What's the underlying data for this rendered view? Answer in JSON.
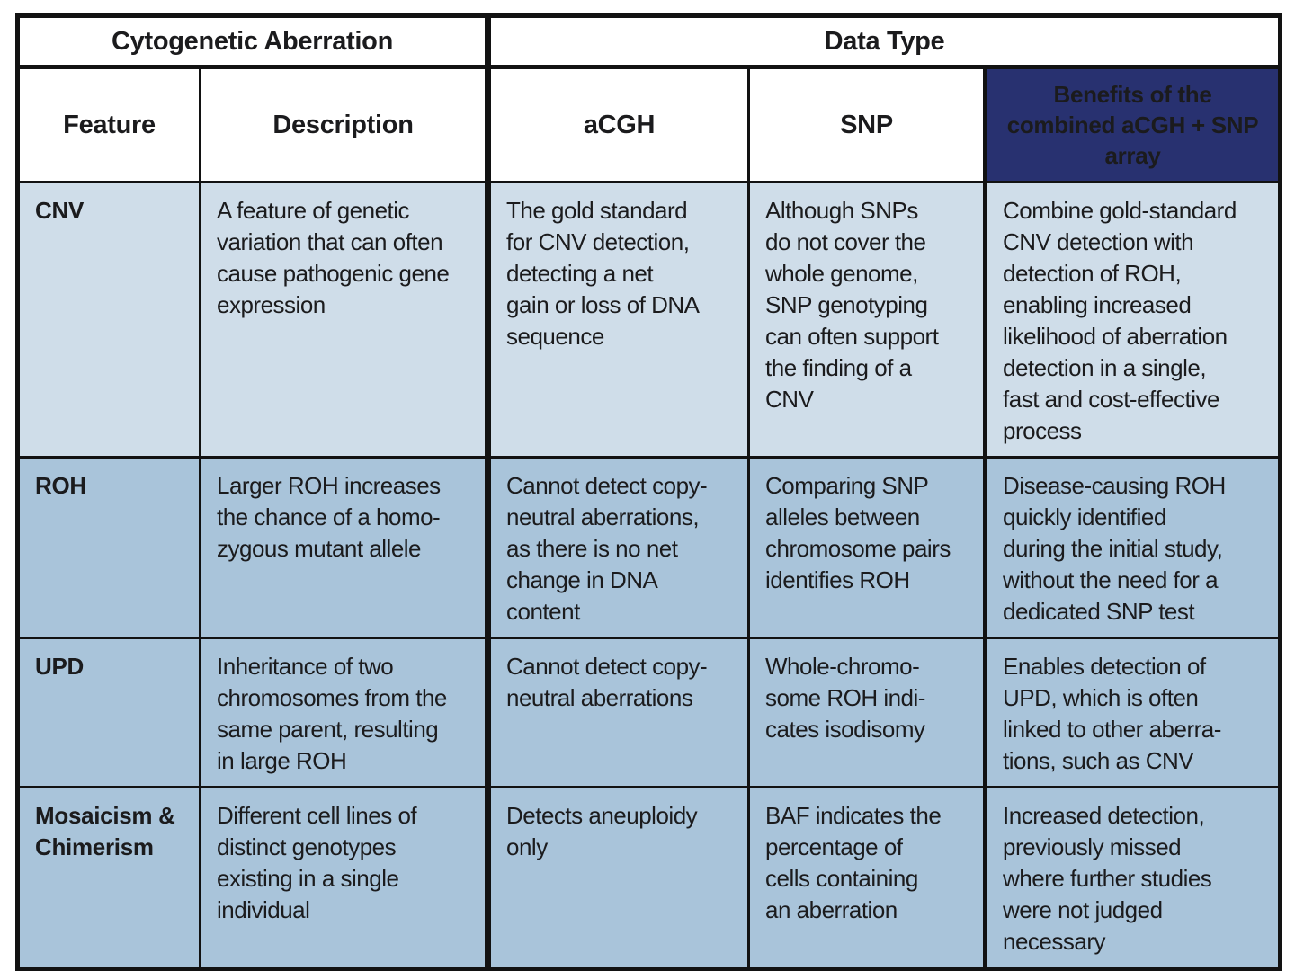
{
  "table": {
    "header": {
      "group_cytogenetic": "Cytogenetic Aberration",
      "group_data_type": "Data Type",
      "col_feature": "Feature",
      "col_description": "Description",
      "col_acgh": "aCGH",
      "col_snp": "SNP",
      "col_benefits": "Benefits of the\ncombined aCGH + SNP\narray"
    },
    "rows": [
      {
        "feature": "CNV",
        "description": "A feature of genetic\nvariation that can often\ncause pathogenic gene\nexpression",
        "acgh": "The gold standard\nfor CNV detection,\ndetecting a net\ngain or loss of DNA\nsequence",
        "snp": "Although SNPs\ndo not cover the\nwhole genome,\nSNP genotyping\ncan often support\nthe finding of a\nCNV",
        "benefits": "Combine gold-standard\nCNV detection with\ndetection of ROH,\nenabling increased\nlikelihood of aberration\ndetection in a single,\nfast and  cost-effective\nprocess"
      },
      {
        "feature": "ROH",
        "description": "Larger ROH increases\nthe chance of a homo-\nzygous mutant allele",
        "acgh": "Cannot detect copy-\nneutral aberrations,\nas there is no net\nchange in DNA\ncontent",
        "snp": "Comparing SNP\nalleles between\nchromosome pairs\nidentifies ROH",
        "benefits": "Disease-causing ROH\nquickly identified\nduring the initial study,\nwithout the need for a\ndedicated SNP test"
      },
      {
        "feature": "UPD",
        "description": "Inheritance of two\nchromosomes from the\nsame parent, resulting\nin large ROH",
        "acgh": "Cannot detect copy-\nneutral aberrations",
        "snp": "Whole-chromo-\nsome ROH indi-\ncates isodisomy",
        "benefits": "Enables detection of\nUPD, which is often\nlinked to other aberra-\ntions, such as CNV"
      },
      {
        "feature": "Mosaicism &\nChimerism",
        "description": "Different cell lines of\ndistinct genotypes\nexisting in a single\nindividual",
        "acgh": "Detects aneuploidy\nonly",
        "snp": "BAF indicates the\npercentage of\ncells containing\nan aberration",
        "benefits": "Increased detection,\npreviously missed\nwhere further studies\nwere not judged\nnecessary"
      }
    ]
  },
  "colors": {
    "header_navy": "#283170",
    "row_light_blue": "#cfdde9",
    "row_medium_blue": "#a9c4da",
    "border_black": "#121212",
    "header_text_white": "#ffffff"
  }
}
